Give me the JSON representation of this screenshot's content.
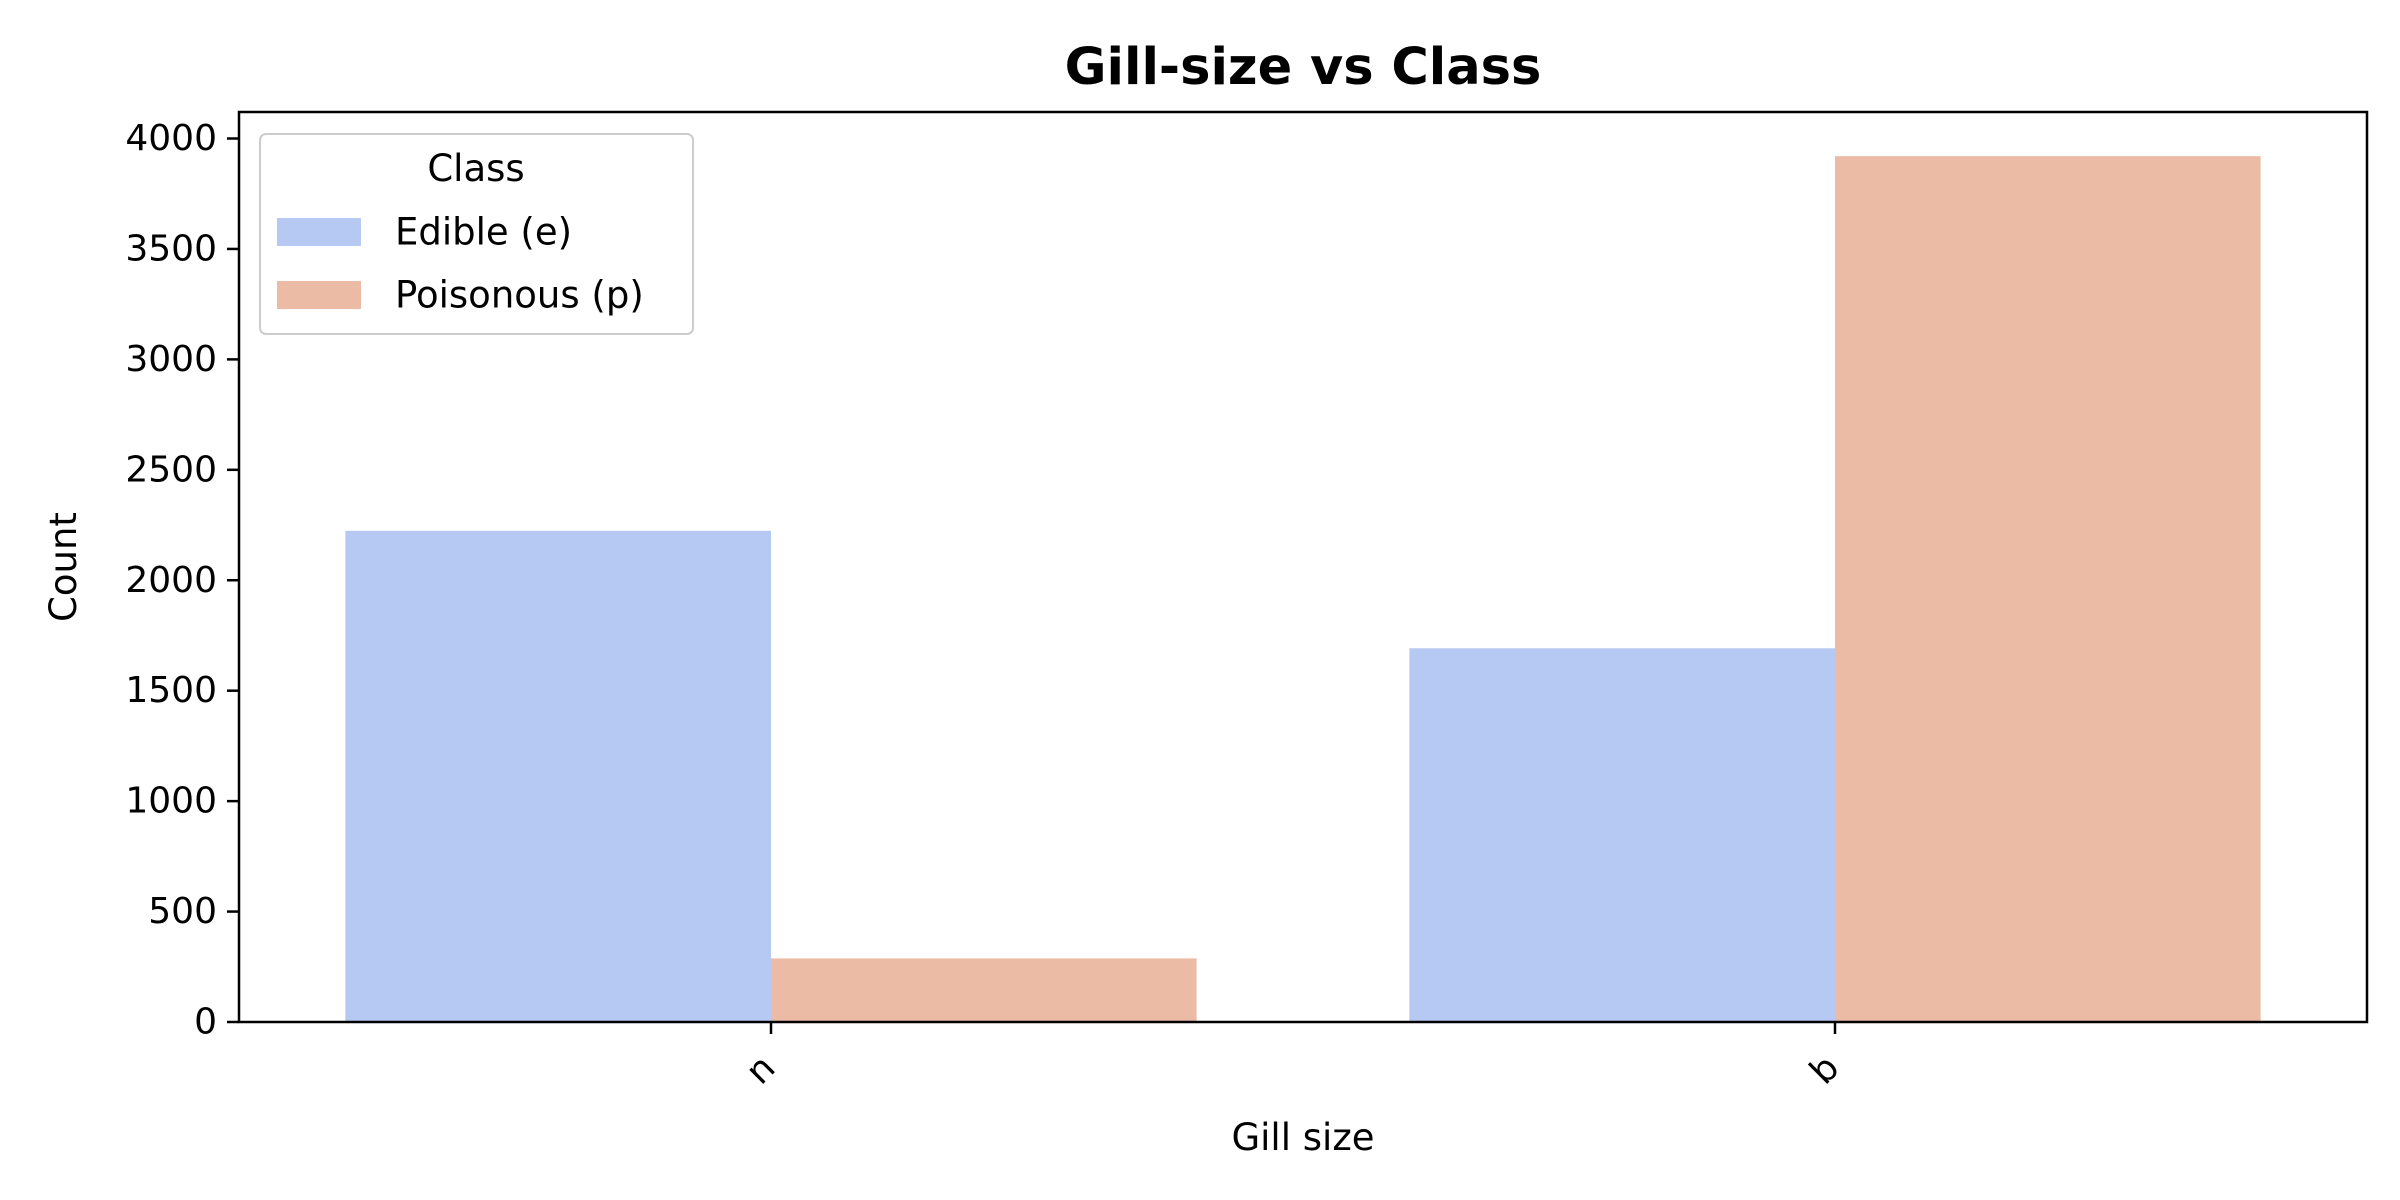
{
  "chart_data": {
    "type": "bar",
    "title": "Gill-size vs Class",
    "xlabel": "Gill size",
    "ylabel": "Count",
    "categories": [
      "n",
      "b"
    ],
    "series": [
      {
        "name": "Edible (e)",
        "values": [
          2224,
          1692
        ],
        "color": "#b5c9f2"
      },
      {
        "name": "Poisonous (p)",
        "values": [
          288,
          3920
        ],
        "color": "#ebbba5"
      }
    ],
    "ylim": [
      0,
      4120
    ],
    "yticks": [
      0,
      500,
      1000,
      1500,
      2000,
      2500,
      3000,
      3500,
      4000
    ],
    "legend": {
      "title": "Class",
      "position": "top-left"
    },
    "grid": false
  }
}
